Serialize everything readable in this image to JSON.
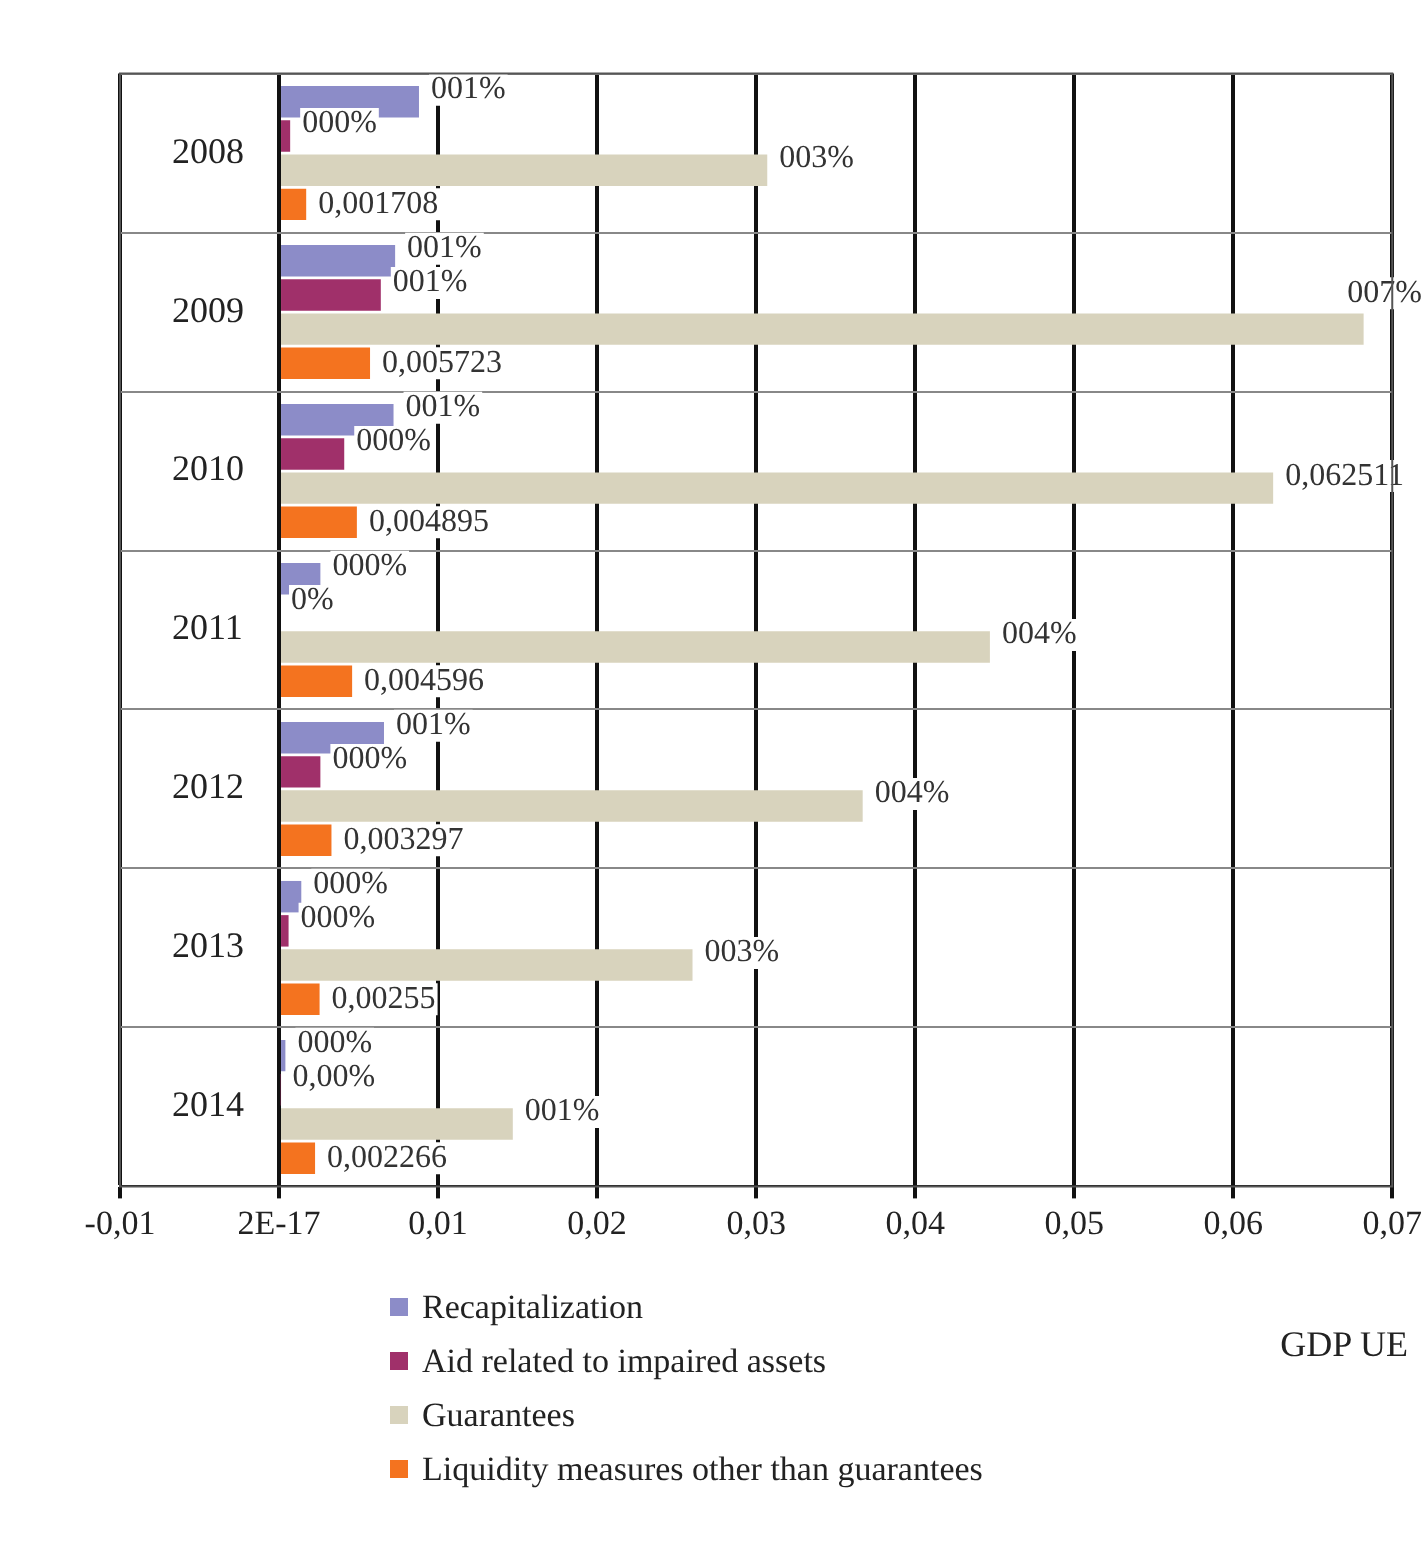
{
  "chart_data": {
    "type": "bar",
    "orientation": "horizontal",
    "xlabel": "GDP UE",
    "categories": [
      "2008",
      "2009",
      "2010",
      "2011",
      "2012",
      "2013",
      "2014"
    ],
    "series": [
      {
        "name": "Recapitalization",
        "color": "#8c8cc8",
        "values": [
          0.0088,
          0.0073,
          0.0072,
          0.0026,
          0.0066,
          0.0014,
          0.0004
        ],
        "value_labels": [
          "001%",
          "001%",
          "001%",
          "000%",
          "001%",
          "000%",
          "000%"
        ]
      },
      {
        "name": "Aid related to impaired assets",
        "color": "#a0306a",
        "values": [
          0.0007,
          0.0064,
          0.0041,
          0,
          0.0026,
          0.0006,
          0.0001
        ],
        "value_labels": [
          "000%",
          "001%",
          "000%",
          "0%",
          "000%",
          "000%",
          "0,00%"
        ]
      },
      {
        "name": "Guarantees",
        "color": "#d8d3bd",
        "values": [
          0.0307,
          0.0682,
          0.062511,
          0.0447,
          0.0367,
          0.026,
          0.0147
        ],
        "value_labels": [
          "003%",
          "007%",
          "0,062511",
          "004%",
          "004%",
          "003%",
          "001%"
        ]
      },
      {
        "name": "Liquidity measures other than guarantees",
        "color": "#f4731f",
        "values": [
          0.001708,
          0.005723,
          0.004895,
          0.004596,
          0.003297,
          0.00255,
          0.002266
        ],
        "value_labels": [
          "0,001708",
          "0,005723",
          "0,004895",
          "0,004596",
          "0,003297",
          "0,00255",
          "0,002266"
        ]
      }
    ],
    "xlim": [
      -0.01,
      0.07
    ],
    "xticks": [
      {
        "value": -0.01,
        "label": "-0,01"
      },
      {
        "value": 0,
        "label": "2E-17"
      },
      {
        "value": 0.01,
        "label": "0,01"
      },
      {
        "value": 0.02,
        "label": "0,02"
      },
      {
        "value": 0.03,
        "label": "0,03"
      },
      {
        "value": 0.04,
        "label": "0,04"
      },
      {
        "value": 0.05,
        "label": "0,05"
      },
      {
        "value": 0.06,
        "label": "0,06"
      },
      {
        "value": 0.07,
        "label": "0,07"
      }
    ],
    "grid": true,
    "legend": "bottom"
  }
}
